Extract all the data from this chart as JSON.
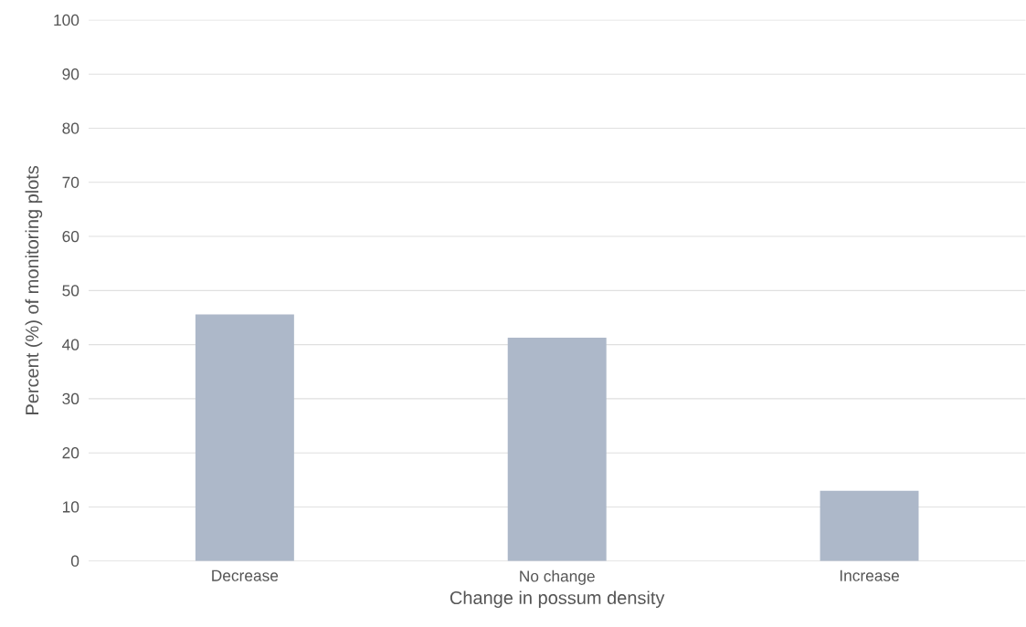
{
  "chart_data": {
    "type": "bar",
    "xlabel": "Change in possum density",
    "ylabel": "Percent (%) of monitoring plots",
    "categories": [
      "Decrease",
      "No change",
      "Increase"
    ],
    "values": [
      45.6,
      41.3,
      13.0
    ],
    "color": "#adb8c9",
    "ylim": [
      0,
      100
    ],
    "yticks": [
      0,
      10,
      20,
      30,
      40,
      50,
      60,
      70,
      80,
      90,
      100
    ],
    "grid": "y"
  }
}
